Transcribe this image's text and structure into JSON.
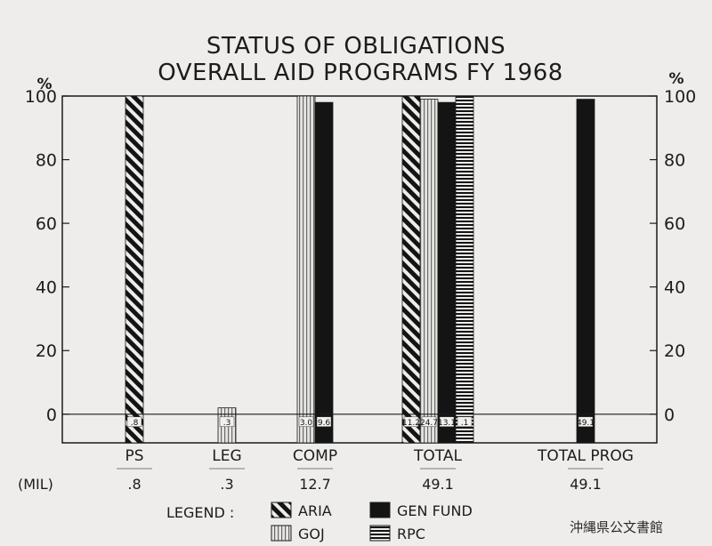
{
  "chart_data": {
    "type": "bar",
    "title": "STATUS OF OBLIGATIONS",
    "subtitle": "OVERALL AID PROGRAMS FY 1968",
    "ylabel_left": "%",
    "ylabel_right": "%",
    "ylim": [
      -9,
      100
    ],
    "y_ticks": [
      0,
      20,
      40,
      60,
      80,
      100
    ],
    "grid": false,
    "mil_row_label": "(MIL)",
    "categories": [
      {
        "name": "PS",
        "mil": ".8",
        "bars": [
          {
            "series": "ARIA",
            "value": 100,
            "label": ".8"
          }
        ]
      },
      {
        "name": "LEG",
        "mil": ".3",
        "bars": [
          {
            "series": "GOJ",
            "value": 2,
            "label": ".3"
          }
        ]
      },
      {
        "name": "COMP",
        "mil": "12.7",
        "bars": [
          {
            "series": "GOJ",
            "value": 100,
            "label": "3.0"
          },
          {
            "series": "GEN FUND",
            "value": 98,
            "label": "9.6"
          }
        ]
      },
      {
        "name": "TOTAL",
        "mil": "49.1",
        "bars": [
          {
            "series": "ARIA",
            "value": 100,
            "label": "11.2"
          },
          {
            "series": "GOJ",
            "value": 99,
            "label": "24.7"
          },
          {
            "series": "GEN FUND",
            "value": 98,
            "label": "13.1"
          },
          {
            "series": "RPC",
            "value": 100,
            "label": ".1"
          }
        ]
      },
      {
        "name": "TOTAL PROG",
        "mil": "49.1",
        "bars": [
          {
            "series": "GEN FUND",
            "value": 99,
            "label": "49.1"
          }
        ]
      }
    ],
    "legend": {
      "title": "LEGEND :",
      "items": [
        {
          "series": "ARIA",
          "label": "ARIA",
          "pattern": "diagonal"
        },
        {
          "series": "GEN FUND",
          "label": "GEN FUND",
          "pattern": "solid"
        },
        {
          "series": "GOJ",
          "label": "GOJ",
          "pattern": "vertical"
        },
        {
          "series": "RPC",
          "label": "RPC",
          "pattern": "horizontal"
        }
      ]
    },
    "colors": {
      "ink": "#141414",
      "paper": "#eeedeb"
    }
  },
  "archive_stamp": "沖縄県公文書館"
}
